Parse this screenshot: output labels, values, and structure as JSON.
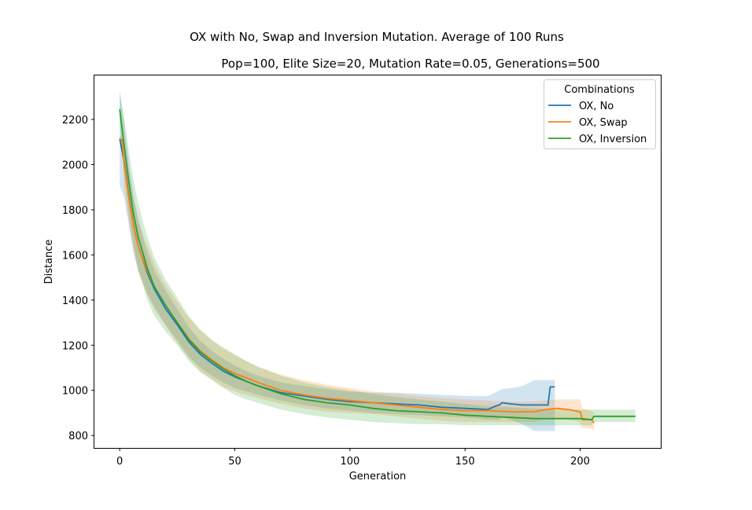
{
  "chart_data": {
    "type": "line",
    "title": "OX with No, Swap and Inversion Mutation. Average of 100 Runs",
    "subtitle": "Pop=100, Elite Size=20, Mutation Rate=0.05, Generations=500",
    "xlabel": "Generation",
    "ylabel": "Distance",
    "xlim": [
      -11,
      235
    ],
    "ylim": [
      745,
      2395
    ],
    "xticks": [
      0,
      50,
      100,
      150,
      200
    ],
    "yticks": [
      800,
      1000,
      1200,
      1400,
      1600,
      1800,
      2000,
      2200
    ],
    "grid": false,
    "legend": {
      "title": "Combinations",
      "placement": "top-right"
    },
    "series": [
      {
        "name": "OX, No",
        "color": "#1f77b4",
        "x": [
          0,
          2,
          4,
          6,
          8,
          10,
          12,
          15,
          20,
          25,
          30,
          35,
          40,
          45,
          50,
          55,
          60,
          70,
          80,
          90,
          100,
          110,
          120,
          130,
          140,
          150,
          160,
          163,
          165,
          166,
          170,
          175,
          180,
          186,
          187,
          189
        ],
        "y": [
          2115,
          2010,
          1860,
          1730,
          1640,
          1580,
          1520,
          1450,
          1360,
          1290,
          1215,
          1160,
          1120,
          1085,
          1060,
          1040,
          1020,
          990,
          975,
          960,
          950,
          945,
          940,
          935,
          925,
          920,
          915,
          930,
          935,
          945,
          940,
          935,
          935,
          935,
          1015,
          1015
        ],
        "band_upper": [
          2330,
          2180,
          2000,
          1860,
          1760,
          1680,
          1610,
          1530,
          1440,
          1360,
          1280,
          1220,
          1175,
          1140,
          1110,
          1085,
          1065,
          1035,
          1020,
          1005,
          995,
          990,
          990,
          985,
          980,
          975,
          975,
          990,
          1000,
          1005,
          1010,
          1020,
          1045,
          1045,
          1045,
          1045
        ],
        "band_lower": [
          1910,
          1850,
          1730,
          1610,
          1530,
          1480,
          1430,
          1370,
          1290,
          1220,
          1150,
          1100,
          1065,
          1035,
          1010,
          995,
          980,
          955,
          935,
          920,
          910,
          900,
          895,
          890,
          885,
          880,
          870,
          870,
          870,
          880,
          870,
          850,
          820,
          820,
          820,
          820
        ]
      },
      {
        "name": "OX, Swap",
        "color": "#ff7f0e",
        "x": [
          0,
          1,
          2,
          4,
          6,
          8,
          10,
          12,
          15,
          20,
          25,
          30,
          35,
          40,
          45,
          50,
          55,
          60,
          70,
          80,
          90,
          100,
          110,
          120,
          130,
          140,
          150,
          160,
          170,
          180,
          185,
          190,
          195,
          200,
          201,
          205,
          206
        ],
        "y": [
          2115,
          2110,
          2000,
          1850,
          1730,
          1640,
          1580,
          1530,
          1460,
          1375,
          1300,
          1230,
          1175,
          1135,
          1100,
          1075,
          1055,
          1035,
          1000,
          980,
          965,
          955,
          945,
          935,
          925,
          915,
          910,
          910,
          905,
          905,
          915,
          920,
          915,
          905,
          870,
          870,
          855
        ],
        "band_upper": [
          2130,
          2125,
          2110,
          1970,
          1850,
          1760,
          1690,
          1640,
          1560,
          1465,
          1390,
          1320,
          1265,
          1220,
          1185,
          1155,
          1130,
          1105,
          1070,
          1045,
          1025,
          1010,
          995,
          985,
          975,
          965,
          960,
          955,
          950,
          950,
          955,
          960,
          960,
          960,
          920,
          910,
          900
        ],
        "band_lower": [
          2100,
          2095,
          1890,
          1735,
          1615,
          1525,
          1470,
          1420,
          1360,
          1285,
          1210,
          1140,
          1085,
          1050,
          1015,
          995,
          980,
          965,
          940,
          920,
          905,
          900,
          895,
          885,
          875,
          865,
          860,
          860,
          860,
          860,
          870,
          875,
          870,
          860,
          835,
          830,
          820
        ]
      },
      {
        "name": "OX, Inversion",
        "color": "#2ca02c",
        "x": [
          0,
          2,
          4,
          6,
          8,
          10,
          12,
          15,
          20,
          25,
          30,
          35,
          40,
          45,
          50,
          55,
          60,
          70,
          80,
          90,
          100,
          110,
          120,
          130,
          140,
          150,
          160,
          170,
          180,
          190,
          200,
          205,
          206,
          210,
          215,
          220,
          224
        ],
        "y": [
          2245,
          2080,
          1920,
          1780,
          1680,
          1610,
          1540,
          1460,
          1375,
          1300,
          1225,
          1170,
          1130,
          1095,
          1065,
          1040,
          1020,
          985,
          960,
          945,
          935,
          920,
          910,
          905,
          900,
          890,
          885,
          880,
          875,
          875,
          875,
          870,
          885,
          885,
          885,
          885,
          885
        ],
        "band_upper": [
          2320,
          2200,
          2060,
          1930,
          1830,
          1750,
          1680,
          1590,
          1490,
          1410,
          1330,
          1270,
          1225,
          1190,
          1160,
          1130,
          1105,
          1065,
          1035,
          1015,
          1000,
          985,
          970,
          960,
          950,
          940,
          930,
          925,
          920,
          915,
          915,
          915,
          915,
          915,
          915,
          915,
          915
        ],
        "band_lower": [
          2170,
          1960,
          1780,
          1640,
          1540,
          1470,
          1400,
          1330,
          1260,
          1200,
          1130,
          1080,
          1045,
          1010,
          980,
          960,
          945,
          915,
          895,
          880,
          870,
          860,
          855,
          850,
          850,
          845,
          845,
          845,
          845,
          845,
          845,
          845,
          860,
          860,
          860,
          860,
          860
        ]
      }
    ]
  }
}
